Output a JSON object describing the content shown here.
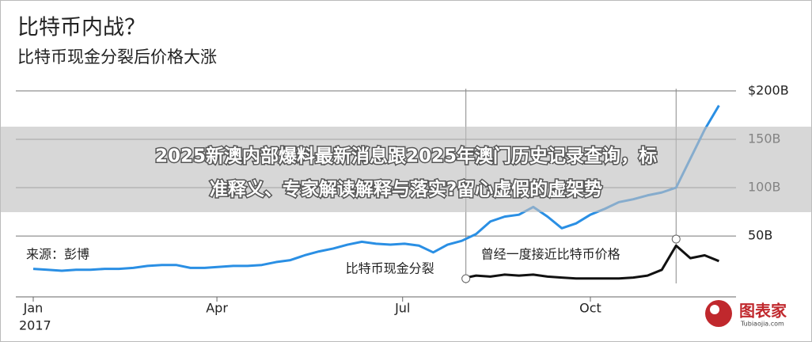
{
  "chart_data": {
    "type": "line",
    "title": "比特币内战？",
    "subtitle": "比特币现金分裂后价格大涨",
    "source": "来源：彭博",
    "x_year_label": "2017",
    "x": [
      1,
      8,
      15,
      22,
      29,
      36,
      43,
      50,
      57,
      64,
      71,
      78,
      85,
      92,
      99,
      106,
      113,
      120,
      127,
      134,
      141,
      148,
      155,
      162,
      169,
      176,
      183,
      190,
      197,
      204,
      211,
      218,
      225,
      232,
      239,
      246,
      253,
      260,
      267,
      274,
      281,
      288,
      295,
      302,
      309,
      316,
      323,
      330,
      337
    ],
    "series": [
      {
        "color": "#2a8fe4",
        "values": [
          16,
          15,
          14,
          15,
          15,
          16,
          16,
          17,
          19,
          20,
          20,
          17,
          17,
          18,
          19,
          19,
          20,
          23,
          25,
          30,
          34,
          37,
          41,
          44,
          42,
          41,
          42,
          40,
          33,
          41,
          45,
          52,
          65,
          70,
          72,
          80,
          70,
          58,
          63,
          72,
          78,
          85,
          88,
          92,
          95,
          100,
          130,
          160,
          185
        ]
      },
      {
        "color": "#111111",
        "values": [
          null,
          null,
          null,
          null,
          null,
          null,
          null,
          null,
          null,
          null,
          null,
          null,
          null,
          null,
          null,
          null,
          null,
          null,
          null,
          null,
          null,
          null,
          null,
          null,
          null,
          null,
          null,
          null,
          null,
          null,
          6,
          9,
          8,
          10,
          9,
          10,
          8,
          7,
          6,
          6,
          6,
          6,
          7,
          9,
          15,
          40,
          27,
          30,
          24
        ]
      }
    ],
    "annotations": [
      {
        "text": "比特币现金分裂",
        "x": 213
      },
      {
        "text": "曾经一度接近比特币价格",
        "x": 316
      }
    ],
    "xlim": [
      1,
      338
    ],
    "xticks": [
      {
        "value": 1,
        "label": "Jan"
      },
      {
        "value": 91,
        "label": "Apr"
      },
      {
        "value": 182,
        "label": "Jul"
      },
      {
        "value": 274,
        "label": "Oct"
      }
    ],
    "ylim": [
      -13,
      204
    ],
    "yticks": [
      {
        "value": 50,
        "label": "50B"
      },
      {
        "value": 100,
        "label": "100B"
      },
      {
        "value": 150,
        "label": "150B"
      },
      {
        "value": 200,
        "label": "$200B"
      }
    ],
    "grid": true
  },
  "banner": {
    "lines": [
      "2025新澳内部爆料最新消息跟2025年澳门历史记录查询，标",
      "准释义、专家解读解释与落实?留心虚假的虚架势"
    ]
  },
  "watermark": {
    "text": "图表家",
    "subtext": "Tubiaojia.com"
  }
}
